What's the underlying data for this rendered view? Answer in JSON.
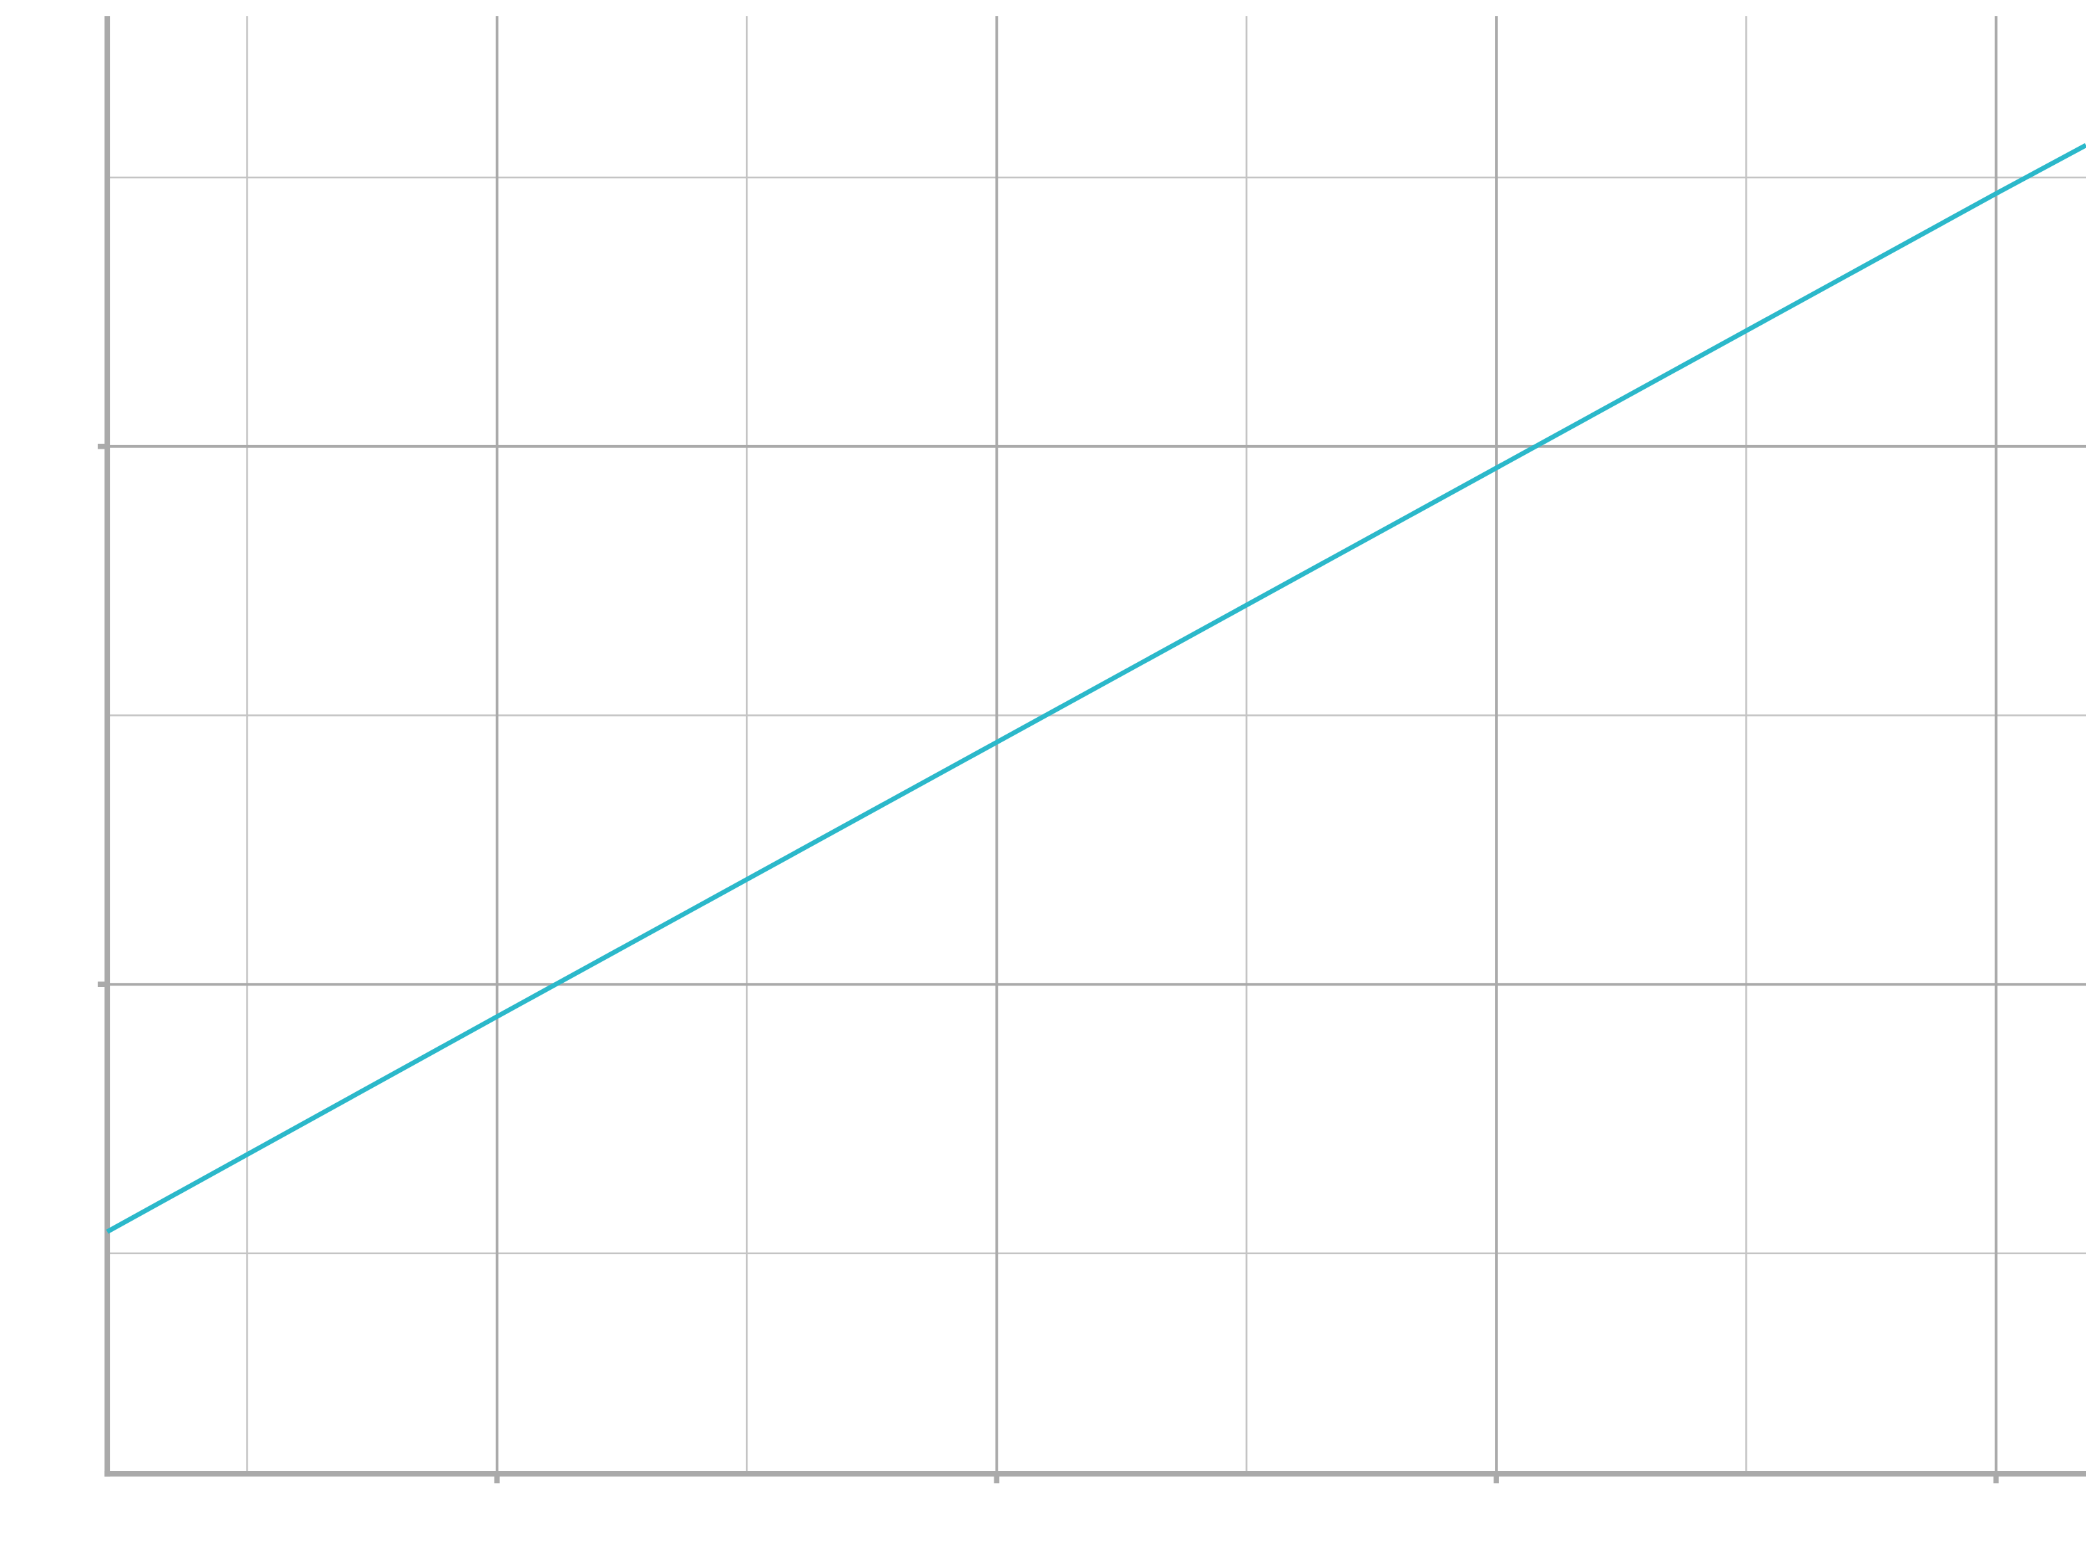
{
  "chart_data": {
    "type": "line",
    "x": [
      0.22,
      1,
      2,
      3,
      4,
      4.18
    ],
    "series": [
      {
        "color": "#2bb8ca",
        "values": [
          0.54,
          0.94,
          1.45,
          1.96,
          2.47,
          2.56
        ]
      }
    ],
    "xlim": [
      0.22,
      4.18
    ],
    "xticks": [
      1,
      2,
      3,
      4
    ],
    "x_minor_ticks": [
      0.5,
      1.5,
      2.5,
      3.5
    ],
    "ylim": [
      0.09,
      2.8
    ],
    "yticks": [
      1,
      2
    ],
    "y_minor_ticks": [
      0.5,
      1.5,
      2.5
    ],
    "grid": true,
    "axis_color": "#aaaaaa"
  }
}
